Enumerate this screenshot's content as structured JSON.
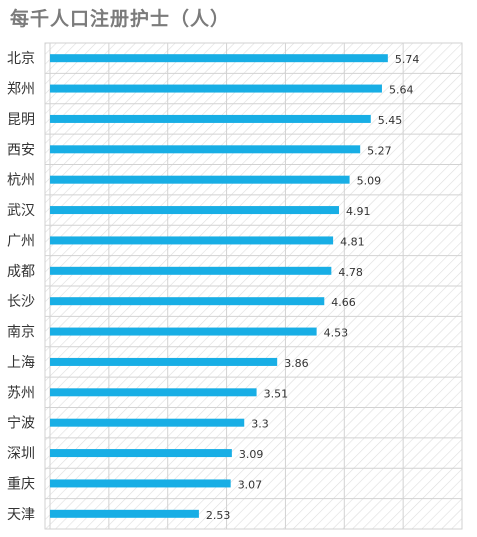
{
  "chart_data": {
    "type": "bar",
    "orientation": "horizontal",
    "title": "每千人口注册护士（人）",
    "categories": [
      "北京",
      "郑州",
      "昆明",
      "西安",
      "杭州",
      "武汉",
      "广州",
      "成都",
      "长沙",
      "南京",
      "上海",
      "苏州",
      "宁波",
      "深圳",
      "重庆",
      "天津"
    ],
    "values": [
      5.74,
      5.64,
      5.45,
      5.27,
      5.09,
      4.91,
      4.81,
      4.78,
      4.66,
      4.53,
      3.86,
      3.51,
      3.3,
      3.09,
      3.07,
      2.53
    ],
    "value_labels": [
      "5.74",
      "5.64",
      "5.45",
      "5.27",
      "5.09",
      "4.91",
      "4.81",
      "4.78",
      "4.66",
      "4.53",
      "3.86",
      "3.51",
      "3.3",
      "3.09",
      "3.07",
      "2.53"
    ],
    "xlim": [
      0,
      7
    ],
    "bar_color": "#18AEE5",
    "grid": true,
    "legend": "none"
  }
}
